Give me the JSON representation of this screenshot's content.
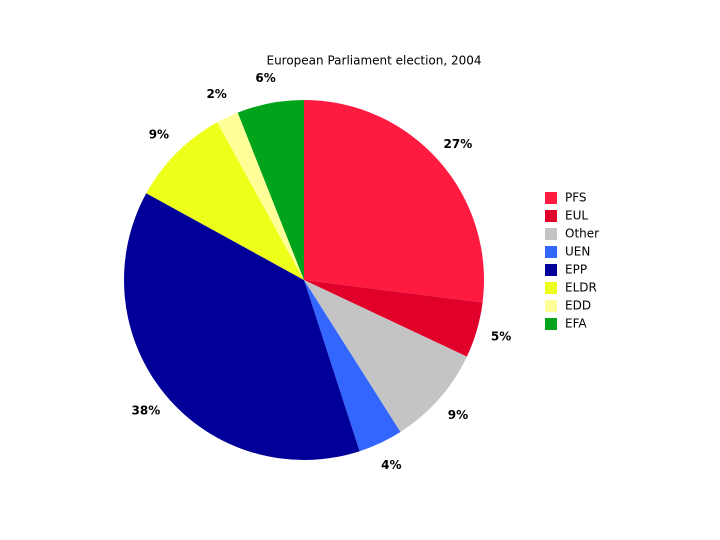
{
  "chart_data": {
    "type": "pie",
    "title": "European Parliament election, 2004",
    "categories": [
      "PFS",
      "EUL",
      "Other",
      "UEN",
      "EPP",
      "ELDR",
      "EDD",
      "EFA"
    ],
    "values": [
      27,
      5,
      9,
      4,
      38,
      9,
      2,
      6
    ],
    "value_labels": [
      "27%",
      "5%",
      "9%",
      "4%",
      "38%",
      "9%",
      "2%",
      "6%"
    ],
    "colors": [
      "#ff1a40",
      "#e0002a",
      "#c4c4c4",
      "#3366ff",
      "#000099",
      "#eeff1a",
      "#ffff99",
      "#00a31a"
    ],
    "legend": "right"
  }
}
